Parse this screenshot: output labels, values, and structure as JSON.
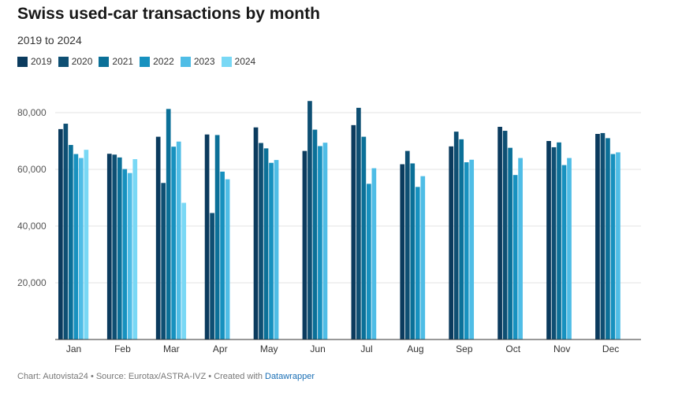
{
  "chart_data": {
    "type": "bar",
    "title": "Swiss used-car transactions by month",
    "subtitle": "2019 to 2024",
    "xlabel": "",
    "ylabel": "",
    "ylim": [
      0,
      90000
    ],
    "yticks": [
      20000,
      40000,
      60000,
      80000
    ],
    "ytick_labels": [
      "20,000",
      "40,000",
      "60,000",
      "80,000"
    ],
    "legend_position": "top-left",
    "grid": true,
    "categories": [
      "Jan",
      "Feb",
      "Mar",
      "Apr",
      "May",
      "Jun",
      "Jul",
      "Aug",
      "Sep",
      "Oct",
      "Nov",
      "Dec"
    ],
    "series": [
      {
        "name": "2019",
        "color": "#0b3b5e",
        "values": [
          74200,
          65500,
          71500,
          72300,
          74800,
          66500,
          75600,
          61800,
          68100,
          75000,
          70000,
          72500
        ]
      },
      {
        "name": "2020",
        "color": "#0e4f73",
        "values": [
          76100,
          65200,
          55200,
          44600,
          69300,
          84100,
          81700,
          66500,
          73300,
          73600,
          67800,
          72800
        ]
      },
      {
        "name": "2021",
        "color": "#0b7098",
        "values": [
          68600,
          64200,
          81300,
          72100,
          67400,
          74000,
          71500,
          62100,
          70600,
          67600,
          69500,
          71000
        ]
      },
      {
        "name": "2022",
        "color": "#1791bf",
        "values": [
          65400,
          60100,
          68000,
          59200,
          62300,
          68200,
          54900,
          53800,
          62500,
          58000,
          61500,
          65400
        ]
      },
      {
        "name": "2023",
        "color": "#4fbde6",
        "values": [
          64000,
          58700,
          69800,
          56500,
          63300,
          69400,
          60400,
          57600,
          63400,
          64000,
          64000,
          66000
        ]
      },
      {
        "name": "2024",
        "color": "#79d8f5",
        "values": [
          66900,
          63600,
          48200,
          null,
          null,
          null,
          null,
          null,
          null,
          null,
          null,
          null
        ]
      }
    ]
  },
  "footer": {
    "prefix": "Chart: Autovista24 • Source: Eurotax/ASTRA-IVZ • Created with ",
    "link": "Datawrapper"
  }
}
